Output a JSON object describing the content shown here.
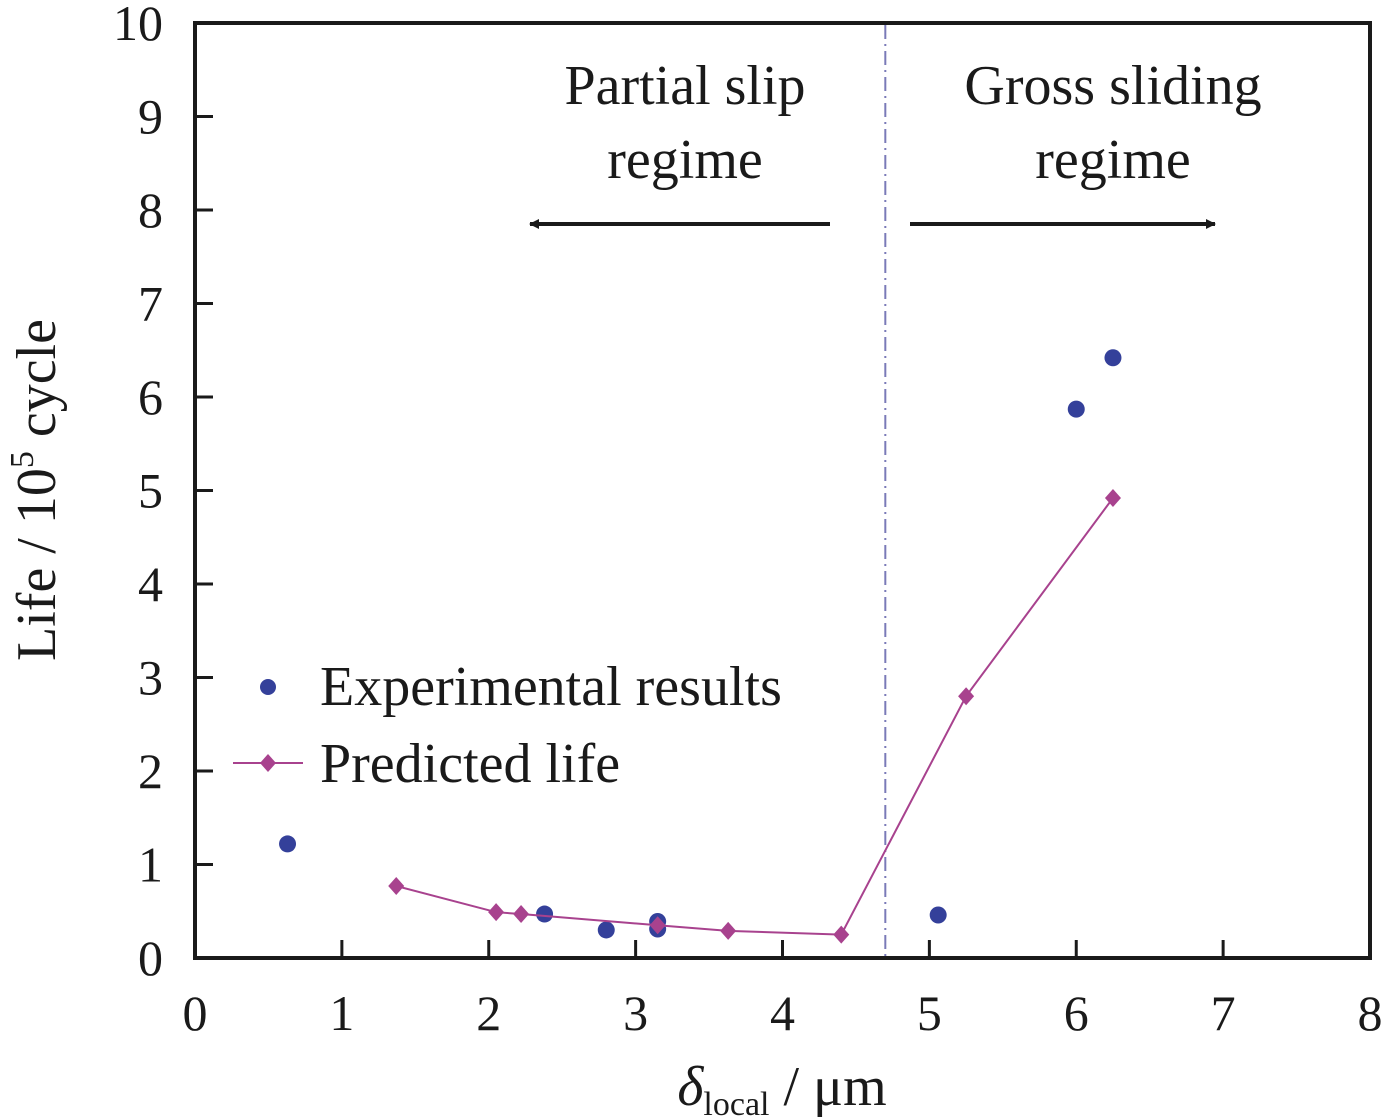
{
  "chart_data": {
    "type": "scatter",
    "xlabel_symbol": "δ",
    "xlabel_subscript": "local",
    "xlabel_unit": " / μm",
    "ylabel_main": "Life / 10",
    "ylabel_sup": "5",
    "ylabel_unit": " cycle",
    "xlim": [
      0,
      8
    ],
    "ylim": [
      0,
      10
    ],
    "x_ticks": [
      0,
      1,
      2,
      3,
      4,
      5,
      6,
      7,
      8
    ],
    "y_ticks": [
      0,
      1,
      2,
      3,
      4,
      5,
      6,
      7,
      8,
      9,
      10
    ],
    "grid": false,
    "legend_position": "center-left",
    "regime_boundary_x": 4.7,
    "annotations": {
      "left_line1": "Partial slip",
      "left_line2": "regime",
      "right_line1": "Gross sliding",
      "right_line2": "regime"
    },
    "series": [
      {
        "name": "Experimental results",
        "kind": "scatter",
        "color": "#34409a",
        "points": [
          [
            0.63,
            1.22
          ],
          [
            2.38,
            0.47
          ],
          [
            2.8,
            0.3
          ],
          [
            3.15,
            0.39
          ],
          [
            3.15,
            0.31
          ],
          [
            5.06,
            0.46
          ],
          [
            6.0,
            5.87
          ],
          [
            6.25,
            6.42
          ]
        ]
      },
      {
        "name": "Predicted life",
        "kind": "line-marker",
        "color": "#a8428e",
        "points": [
          [
            1.37,
            0.77
          ],
          [
            2.05,
            0.49
          ],
          [
            2.22,
            0.47
          ],
          [
            3.15,
            0.35
          ],
          [
            3.63,
            0.29
          ],
          [
            4.4,
            0.25
          ],
          [
            5.25,
            2.8
          ],
          [
            6.25,
            4.92
          ]
        ]
      }
    ]
  }
}
